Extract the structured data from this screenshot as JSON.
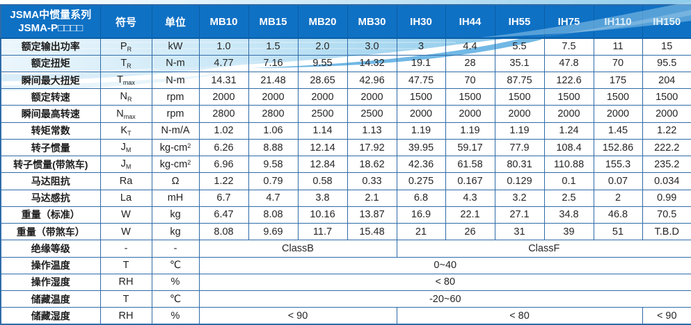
{
  "colors": {
    "header_bg": "#0f71c4",
    "header_text": "#ffffff",
    "grid_border": "#2e6ba8",
    "body_text": "#262626",
    "swoosh_pale": "#e4f2fa",
    "swoosh_mid": "#aedaf1",
    "swoosh_accent": "#58ace0"
  },
  "header": {
    "title_line1": "JSMA中惯量系列",
    "title_line2": "JSMA-P□□□□",
    "symbol_col": "符号",
    "unit_col": "单位",
    "models": [
      "MB10",
      "MB15",
      "MB20",
      "MB30",
      "IH30",
      "IH44",
      "IH55",
      "IH75",
      "IH110",
      "IH150"
    ]
  },
  "rows": [
    {
      "label": "额定输出功率",
      "symbol": "P",
      "symbol_sub": "R",
      "unit": "kW",
      "unit_sup": "",
      "cells": [
        {
          "text": "1.0",
          "span": 1
        },
        {
          "text": "1.5",
          "span": 1
        },
        {
          "text": "2.0",
          "span": 1
        },
        {
          "text": "3.0",
          "span": 1
        },
        {
          "text": "3",
          "span": 1
        },
        {
          "text": "4.4",
          "span": 1
        },
        {
          "text": "5.5",
          "span": 1
        },
        {
          "text": "7.5",
          "span": 1
        },
        {
          "text": "11",
          "span": 1
        },
        {
          "text": "15",
          "span": 1
        }
      ]
    },
    {
      "label": "额定扭矩",
      "symbol": "T",
      "symbol_sub": "R",
      "unit": "N-m",
      "unit_sup": "",
      "cells": [
        {
          "text": "4.77",
          "span": 1
        },
        {
          "text": "7.16",
          "span": 1
        },
        {
          "text": "9.55",
          "span": 1
        },
        {
          "text": "14.32",
          "span": 1
        },
        {
          "text": "19.1",
          "span": 1
        },
        {
          "text": "28",
          "span": 1
        },
        {
          "text": "35.1",
          "span": 1
        },
        {
          "text": "47.8",
          "span": 1
        },
        {
          "text": "70",
          "span": 1
        },
        {
          "text": "95.5",
          "span": 1
        }
      ]
    },
    {
      "label": "瞬间最大扭矩",
      "symbol": "T",
      "symbol_sub": "max",
      "unit": "N-m",
      "unit_sup": "",
      "cells": [
        {
          "text": "14.31",
          "span": 1
        },
        {
          "text": "21.48",
          "span": 1
        },
        {
          "text": "28.65",
          "span": 1
        },
        {
          "text": "42.96",
          "span": 1
        },
        {
          "text": "47.75",
          "span": 1
        },
        {
          "text": "70",
          "span": 1
        },
        {
          "text": "87.75",
          "span": 1
        },
        {
          "text": "122.6",
          "span": 1
        },
        {
          "text": "175",
          "span": 1
        },
        {
          "text": "204",
          "span": 1
        }
      ]
    },
    {
      "label": "额定转速",
      "symbol": "N",
      "symbol_sub": "R",
      "unit": "rpm",
      "unit_sup": "",
      "cells": [
        {
          "text": "2000",
          "span": 1
        },
        {
          "text": "2000",
          "span": 1
        },
        {
          "text": "2000",
          "span": 1
        },
        {
          "text": "2000",
          "span": 1
        },
        {
          "text": "1500",
          "span": 1
        },
        {
          "text": "1500",
          "span": 1
        },
        {
          "text": "1500",
          "span": 1
        },
        {
          "text": "1500",
          "span": 1
        },
        {
          "text": "1500",
          "span": 1
        },
        {
          "text": "1500",
          "span": 1
        }
      ]
    },
    {
      "label": "瞬间最高转速",
      "symbol": "N",
      "symbol_sub": "max",
      "unit": "rpm",
      "unit_sup": "",
      "cells": [
        {
          "text": "2800",
          "span": 1
        },
        {
          "text": "2800",
          "span": 1
        },
        {
          "text": "2500",
          "span": 1
        },
        {
          "text": "2500",
          "span": 1
        },
        {
          "text": "2000",
          "span": 1
        },
        {
          "text": "2000",
          "span": 1
        },
        {
          "text": "2000",
          "span": 1
        },
        {
          "text": "2000",
          "span": 1
        },
        {
          "text": "2000",
          "span": 1
        },
        {
          "text": "2000",
          "span": 1
        }
      ]
    },
    {
      "label": "转矩常数",
      "symbol": "K",
      "symbol_sub": "T",
      "unit": "N-m/A",
      "unit_sup": "",
      "cells": [
        {
          "text": "1.02",
          "span": 1
        },
        {
          "text": "1.06",
          "span": 1
        },
        {
          "text": "1.14",
          "span": 1
        },
        {
          "text": "1.13",
          "span": 1
        },
        {
          "text": "1.19",
          "span": 1
        },
        {
          "text": "1.19",
          "span": 1
        },
        {
          "text": "1.19",
          "span": 1
        },
        {
          "text": "1.24",
          "span": 1
        },
        {
          "text": "1.45",
          "span": 1
        },
        {
          "text": "1.22",
          "span": 1
        }
      ]
    },
    {
      "label": "转子惯量",
      "symbol": "J",
      "symbol_sub": "M",
      "unit": "kg-cm",
      "unit_sup": "2",
      "cells": [
        {
          "text": "6.26",
          "span": 1
        },
        {
          "text": "8.88",
          "span": 1
        },
        {
          "text": "12.14",
          "span": 1
        },
        {
          "text": "17.92",
          "span": 1
        },
        {
          "text": "39.95",
          "span": 1
        },
        {
          "text": "59.17",
          "span": 1
        },
        {
          "text": "77.9",
          "span": 1
        },
        {
          "text": "108.4",
          "span": 1
        },
        {
          "text": "152.86",
          "span": 1
        },
        {
          "text": "222.2",
          "span": 1
        }
      ]
    },
    {
      "label": "转子惯量(带煞车)",
      "symbol": "J",
      "symbol_sub": "M",
      "unit": "kg-cm",
      "unit_sup": "2",
      "cells": [
        {
          "text": "6.96",
          "span": 1
        },
        {
          "text": "9.58",
          "span": 1
        },
        {
          "text": "12.84",
          "span": 1
        },
        {
          "text": "18.62",
          "span": 1
        },
        {
          "text": "42.36",
          "span": 1
        },
        {
          "text": "61.58",
          "span": 1
        },
        {
          "text": "80.31",
          "span": 1
        },
        {
          "text": "110.88",
          "span": 1
        },
        {
          "text": "155.3",
          "span": 1
        },
        {
          "text": "235.2",
          "span": 1
        }
      ]
    },
    {
      "label": "马达阻抗",
      "symbol": "Ra",
      "symbol_sub": "",
      "unit": "Ω",
      "unit_sup": "",
      "cells": [
        {
          "text": "1.22",
          "span": 1
        },
        {
          "text": "0.79",
          "span": 1
        },
        {
          "text": "0.58",
          "span": 1
        },
        {
          "text": "0.33",
          "span": 1
        },
        {
          "text": "0.275",
          "span": 1
        },
        {
          "text": "0.167",
          "span": 1
        },
        {
          "text": "0.129",
          "span": 1
        },
        {
          "text": "0.1",
          "span": 1
        },
        {
          "text": "0.07",
          "span": 1
        },
        {
          "text": "0.034",
          "span": 1
        }
      ]
    },
    {
      "label": "马达感抗",
      "symbol": "La",
      "symbol_sub": "",
      "unit": "mH",
      "unit_sup": "",
      "cells": [
        {
          "text": "6.7",
          "span": 1
        },
        {
          "text": "4.7",
          "span": 1
        },
        {
          "text": "3.8",
          "span": 1
        },
        {
          "text": "2.1",
          "span": 1
        },
        {
          "text": "6.8",
          "span": 1
        },
        {
          "text": "4.3",
          "span": 1
        },
        {
          "text": "3.2",
          "span": 1
        },
        {
          "text": "2.5",
          "span": 1
        },
        {
          "text": "2",
          "span": 1
        },
        {
          "text": "0.99",
          "span": 1
        }
      ]
    },
    {
      "label": "重量（标准）",
      "symbol": "W",
      "symbol_sub": "",
      "unit": "kg",
      "unit_sup": "",
      "cells": [
        {
          "text": "6.47",
          "span": 1
        },
        {
          "text": "8.08",
          "span": 1
        },
        {
          "text": "10.16",
          "span": 1
        },
        {
          "text": "13.87",
          "span": 1
        },
        {
          "text": "16.9",
          "span": 1
        },
        {
          "text": "22.1",
          "span": 1
        },
        {
          "text": "27.1",
          "span": 1
        },
        {
          "text": "34.8",
          "span": 1
        },
        {
          "text": "46.8",
          "span": 1
        },
        {
          "text": "70.5",
          "span": 1
        }
      ]
    },
    {
      "label": "重量（带煞车）",
      "symbol": "W",
      "symbol_sub": "",
      "unit": "kg",
      "unit_sup": "",
      "cells": [
        {
          "text": "8.08",
          "span": 1
        },
        {
          "text": "9.69",
          "span": 1
        },
        {
          "text": "11.7",
          "span": 1
        },
        {
          "text": "15.48",
          "span": 1
        },
        {
          "text": "21",
          "span": 1
        },
        {
          "text": "26",
          "span": 1
        },
        {
          "text": "31",
          "span": 1
        },
        {
          "text": "39",
          "span": 1
        },
        {
          "text": "51",
          "span": 1
        },
        {
          "text": "T.B.D",
          "span": 1
        }
      ]
    },
    {
      "label": "绝缘等级",
      "symbol": "-",
      "symbol_sub": "",
      "unit": "-",
      "unit_sup": "",
      "cells": [
        {
          "text": "ClassB",
          "span": 4
        },
        {
          "text": "ClassF",
          "span": 6
        }
      ]
    },
    {
      "label": "操作温度",
      "symbol": "T",
      "symbol_sub": "",
      "unit": "℃",
      "unit_sup": "",
      "cells": [
        {
          "text": "0~40",
          "span": 10
        }
      ]
    },
    {
      "label": "操作湿度",
      "symbol": "RH",
      "symbol_sub": "",
      "unit": "%",
      "unit_sup": "",
      "cells": [
        {
          "text": "< 80",
          "span": 10
        }
      ]
    },
    {
      "label": "储藏温度",
      "symbol": "T",
      "symbol_sub": "",
      "unit": "℃",
      "unit_sup": "",
      "cells": [
        {
          "text": "-20~60",
          "span": 10
        }
      ]
    },
    {
      "label": "储藏湿度",
      "symbol": "RH",
      "symbol_sub": "",
      "unit": "%",
      "unit_sup": "",
      "cells": [
        {
          "text": "< 90",
          "span": 4
        },
        {
          "text": "< 80",
          "span": 5
        },
        {
          "text": "< 90",
          "span": 1
        }
      ]
    }
  ]
}
